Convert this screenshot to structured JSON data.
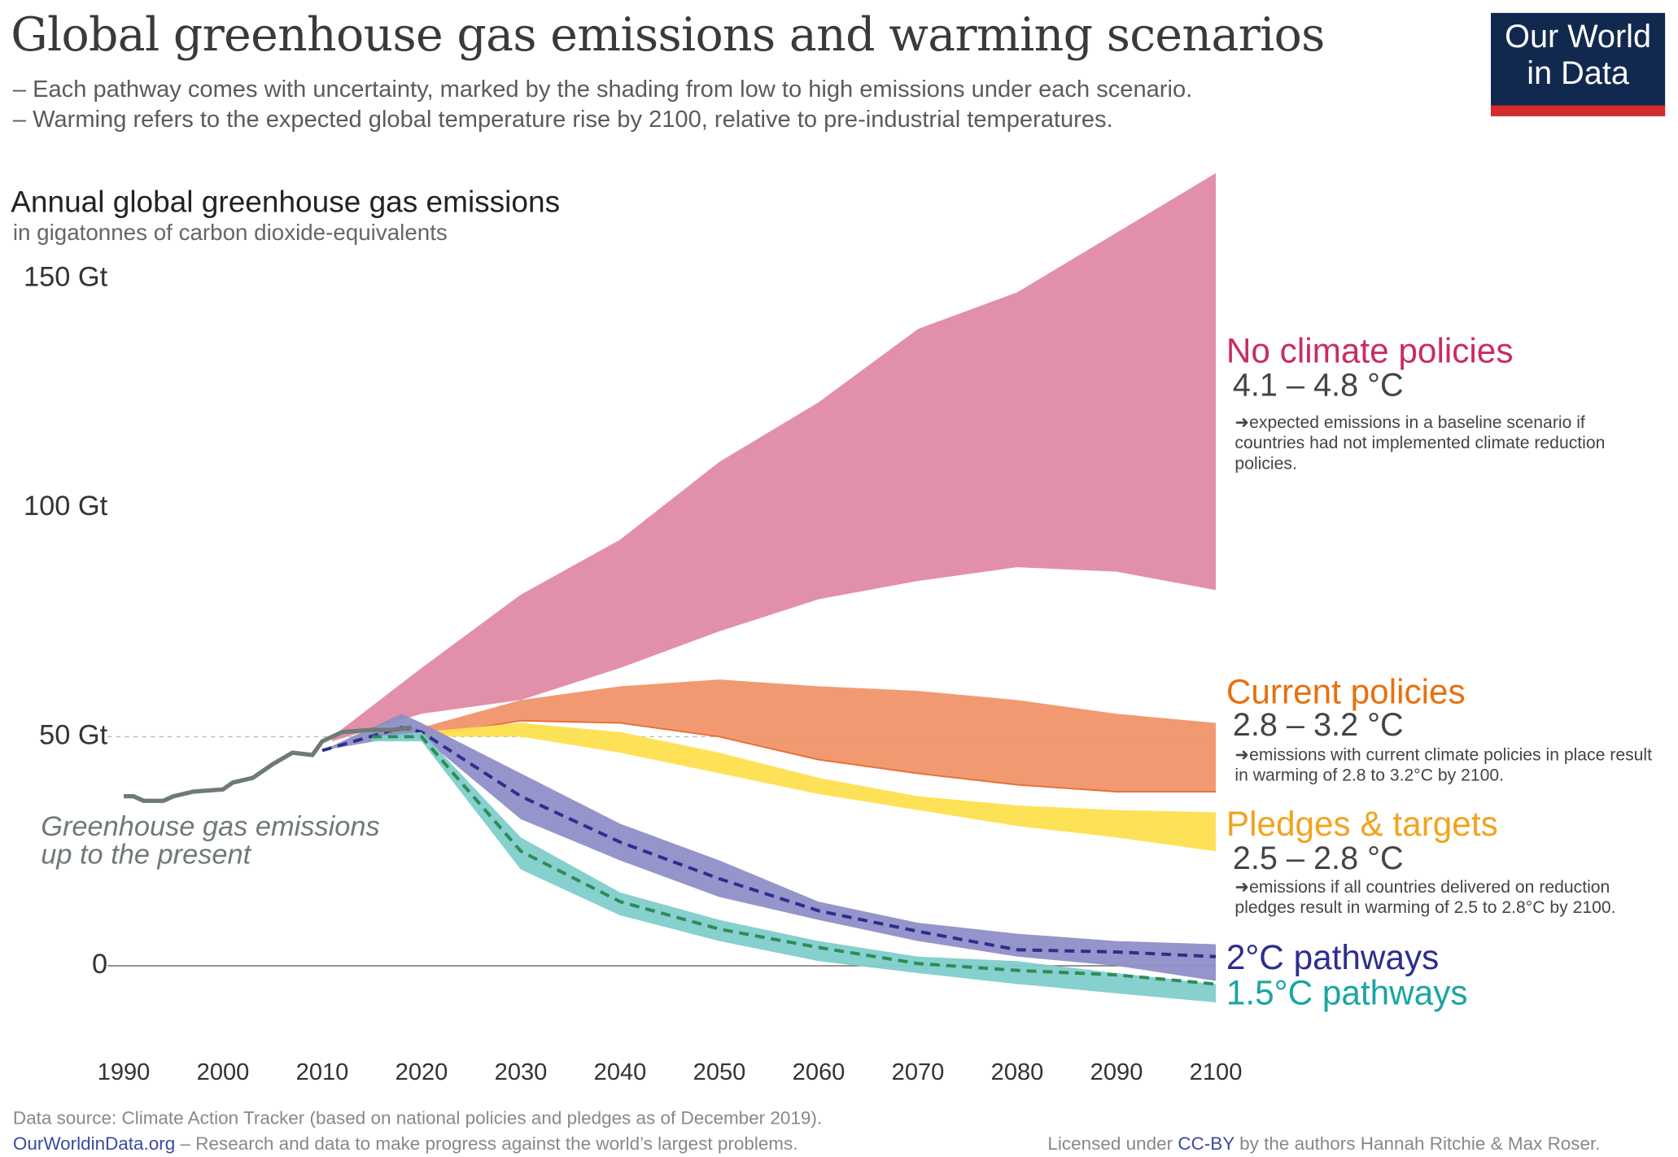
{
  "header": {
    "title": "Global greenhouse gas emissions and warming scenarios",
    "subtitle_lines": [
      "– Each pathway comes with uncertainty, marked by the shading from low to high emissions under each scenario.",
      "– Warming refers to the expected global temperature rise by 2100, relative to pre-industrial temperatures."
    ],
    "logo_line1": "Our World",
    "logo_line2": "in Data"
  },
  "footer": {
    "source": "Data source: Climate Action Tracker (based on national policies and pledges as of December 2019).",
    "site_link": "OurWorldinData.org",
    "site_tagline": " – Research and data to make progress against the world’s largest problems.",
    "license_prefix": "Licensed under ",
    "license_link": "CC-BY",
    "license_suffix": " by the authors Hannah Ritchie & Max Roser."
  },
  "chart_data": {
    "type": "area",
    "title": "Annual global greenhouse gas emissions",
    "ylabel": "in gigatonnes of carbon dioxide-equivalents",
    "ylim": [
      -15,
      175
    ],
    "xlim": [
      1990,
      2100
    ],
    "y_ticks": [
      {
        "value": 0,
        "label": "0"
      },
      {
        "value": 50,
        "label": "50 Gt"
      },
      {
        "value": 100,
        "label": "100 Gt"
      },
      {
        "value": 150,
        "label": "150 Gt"
      }
    ],
    "x_ticks": [
      "1990",
      "2000",
      "2010",
      "2020",
      "2030",
      "2040",
      "2050",
      "2060",
      "2070",
      "2080",
      "2090",
      "2100"
    ],
    "historical": {
      "name": "Greenhouse gas emissions up to the present",
      "color": "#6d7b74",
      "x": [
        1990,
        1991,
        1992,
        1994,
        1995,
        1997,
        2000,
        2001,
        2003,
        2005,
        2007,
        2009,
        2010,
        2012,
        2015,
        2017,
        2019
      ],
      "y": [
        37,
        37,
        36,
        36,
        37,
        38,
        38.5,
        40,
        41,
        44,
        46.5,
        46,
        49,
        51,
        51.5,
        51.5,
        52
      ]
    },
    "series": [
      {
        "name": "No climate policies",
        "range": "4.1 – 4.8 °C",
        "note": "expected emissions in a baseline scenario if countries had not implemented climate reduction policies.",
        "fill": "#e08aa5",
        "label_color": "#ca2c5e",
        "x": [
          2011,
          2020,
          2030,
          2040,
          2050,
          2060,
          2070,
          2080,
          2090,
          2100
        ],
        "high": [
          50,
          65,
          81,
          93,
          110,
          123,
          139,
          147,
          160,
          173
        ],
        "low": [
          49,
          55,
          58,
          65,
          73,
          80,
          84,
          87,
          86,
          82
        ]
      },
      {
        "name": "Current policies",
        "range": "2.8 – 3.2 °C",
        "note": "emissions with current climate policies in place result in warming of 2.8 to 3.2°C by 2100.",
        "fill": "#f0956a",
        "label_color": "#e8700f",
        "x": [
          2015,
          2020,
          2030,
          2040,
          2050,
          2060,
          2070,
          2080,
          2090,
          2100
        ],
        "high": [
          51,
          52,
          58,
          61,
          62.5,
          61,
          60,
          58,
          55,
          53
        ],
        "low": [
          50,
          50,
          53.5,
          53,
          50,
          45,
          42,
          39.5,
          38,
          38
        ]
      },
      {
        "name": "Pledges & targets",
        "range": "2.5 – 2.8 °C",
        "note": "emissions if all countries delivered on reduction pledges result in warming of 2.5 to 2.8°C by 2100.",
        "fill": "#fde04f",
        "label_color": "#f2a31c",
        "x": [
          2015,
          2020,
          2030,
          2040,
          2050,
          2060,
          2070,
          2080,
          2090,
          2100
        ],
        "high": [
          51,
          51,
          53,
          51,
          46.5,
          41,
          37,
          35,
          34,
          33.5
        ],
        "low": [
          50,
          50,
          50,
          46.5,
          42,
          37.5,
          34,
          30.5,
          28,
          25
        ]
      },
      {
        "name": "2°C pathways",
        "range": "",
        "note": "",
        "fill": "#8f8fc8",
        "label_color": "#2d2d8f",
        "median_color": "#2d2d8f",
        "x": [
          2010,
          2018,
          2020,
          2030,
          2040,
          2050,
          2060,
          2070,
          2080,
          2090,
          2100
        ],
        "high": [
          47,
          55,
          53,
          42,
          31,
          23,
          14,
          9.4,
          7,
          5.4,
          4.7
        ],
        "low": [
          47,
          50,
          50,
          32,
          23,
          15,
          10,
          5.4,
          2,
          0,
          -3.3
        ],
        "median": [
          47,
          52,
          51,
          37,
          27,
          19,
          12,
          7.5,
          3.5,
          3,
          2
        ]
      },
      {
        "name": "1.5°C pathways",
        "range": "",
        "note": "",
        "fill": "#7fcdcb",
        "label_color": "#1aa5a3",
        "median_color": "#2e8b57",
        "x": [
          2015,
          2020,
          2030,
          2040,
          2050,
          2060,
          2070,
          2080,
          2090,
          2100
        ],
        "high": [
          50,
          51,
          28,
          16,
          10,
          5.4,
          2,
          1,
          -1.6,
          -4
        ],
        "low": [
          49,
          49,
          21,
          11,
          5.4,
          1,
          -1.6,
          -4,
          -6,
          -8
        ],
        "median": [
          50,
          50,
          25,
          14,
          8,
          4,
          0.5,
          -1,
          -2,
          -4
        ]
      }
    ],
    "reference_line": 50
  }
}
